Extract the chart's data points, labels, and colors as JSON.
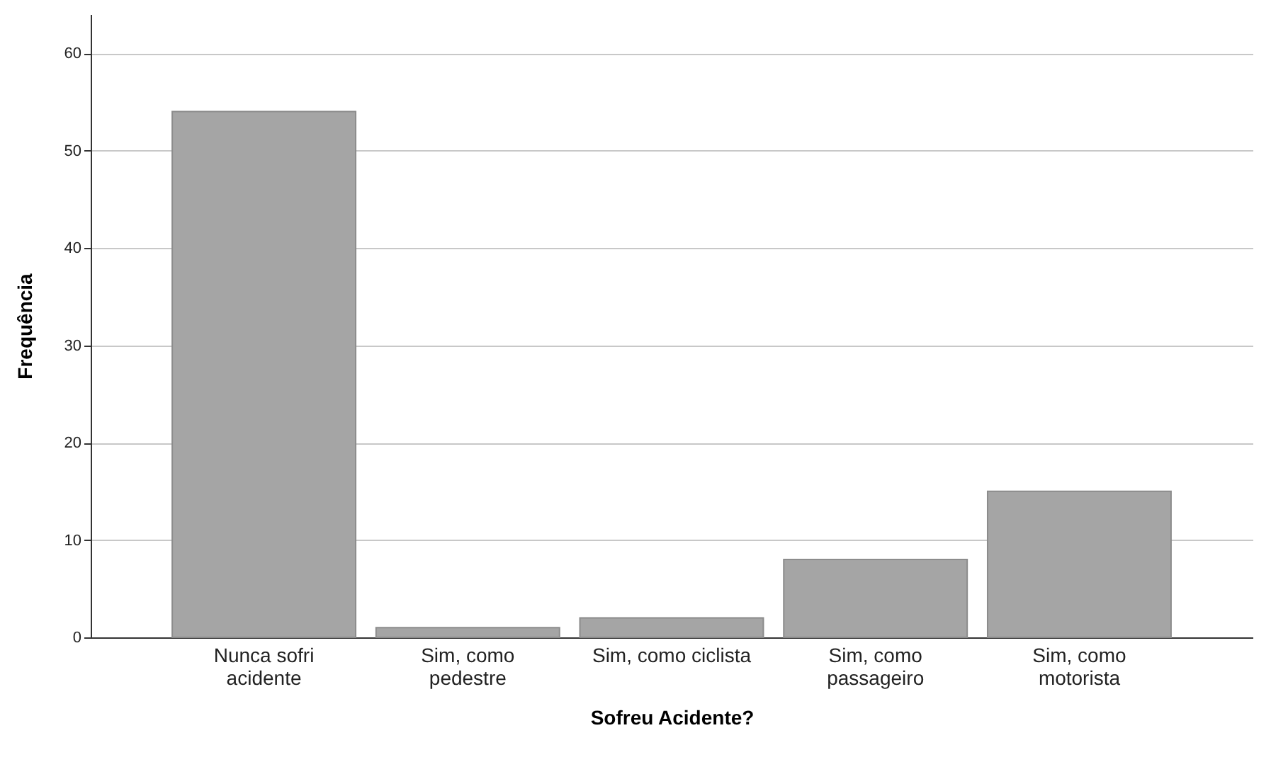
{
  "chart_data": {
    "type": "bar",
    "xlabel": "Sofreu Acidente?",
    "ylabel": "Frequência",
    "categories": [
      "Nunca sofri\nacidente",
      "Sim, como\npedestre",
      "Sim, como ciclista",
      "Sim, como\npassageiro",
      "Sim, como\nmotorista"
    ],
    "values": [
      54,
      1,
      2,
      8,
      15
    ],
    "color": "#a5a5a5",
    "ylim": [
      0,
      64
    ],
    "yticks": [
      0,
      10,
      20,
      30,
      40,
      50,
      60
    ],
    "grid": "y"
  }
}
